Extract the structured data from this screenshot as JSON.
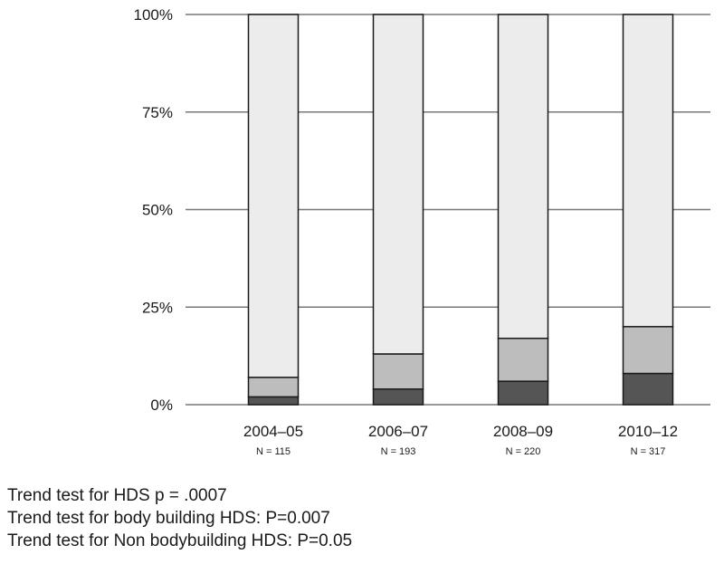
{
  "chart_data": {
    "type": "bar",
    "stacked": true,
    "categories": [
      "2004–05",
      "2006–07",
      "2008–09",
      "2010–12"
    ],
    "category_sublabels": [
      "N = 115",
      "N = 193",
      "N = 220",
      "N = 317"
    ],
    "ylim": [
      0,
      100
    ],
    "yticks": [
      0,
      25,
      50,
      75,
      100
    ],
    "ytick_labels": [
      "0%",
      "25%",
      "50%",
      "75%",
      "100%"
    ],
    "grid": true,
    "series": [
      {
        "values": [
          2,
          4,
          6,
          8
        ],
        "color": "#555555"
      },
      {
        "values": [
          5,
          9,
          11,
          12
        ],
        "color": "#bdbdbd"
      },
      {
        "values": [
          93,
          87,
          83,
          80
        ],
        "color": "#ececec"
      }
    ]
  },
  "notes": [
    "Trend test for HDS p = .0007",
    "Trend test for body building HDS: P=0.007",
    "Trend test for Non bodybuilding HDS: P=0.05"
  ]
}
